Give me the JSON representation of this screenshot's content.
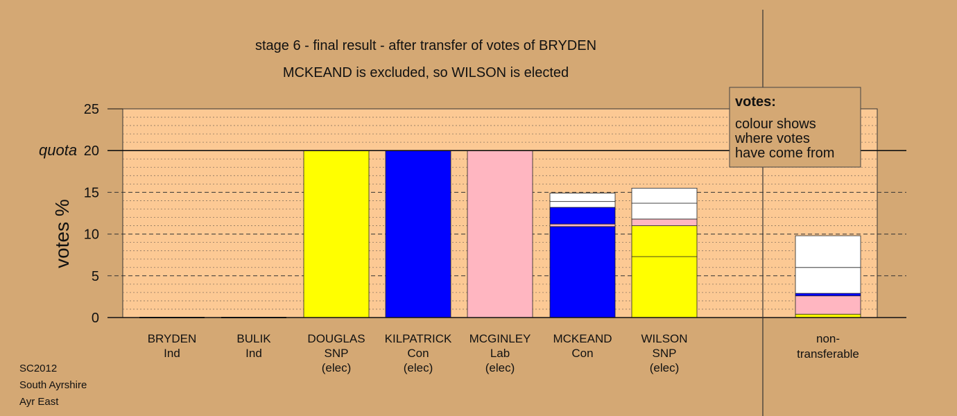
{
  "chart_data": {
    "type": "bar",
    "stacked": true,
    "title": "stage 6 - final result - after transfer of votes of BRYDEN",
    "subtitle": "MCKEAND is excluded, so WILSON is elected",
    "ylabel": "votes %",
    "ylim": [
      0,
      25
    ],
    "yticks": [
      0,
      5,
      10,
      15,
      20,
      25
    ],
    "quota": {
      "label": "quota",
      "value": 20
    },
    "grid": true,
    "colors": {
      "SNP": "#ffff00",
      "Con": "#0000ff",
      "Lab": "#ffb6c1",
      "Ind": "#ffffff",
      "Other": "#ffffff",
      "transfer": "#ffffff"
    },
    "candidates": [
      {
        "name": "BRYDEN",
        "party": "Ind",
        "status": "",
        "segments": []
      },
      {
        "name": "BULIK",
        "party": "Ind",
        "status": "",
        "segments": []
      },
      {
        "name": "DOUGLAS",
        "party": "SNP",
        "status": "(elec)",
        "segments": [
          {
            "from": "SNP",
            "value": 20.0
          }
        ]
      },
      {
        "name": "KILPATRICK",
        "party": "Con",
        "status": "(elec)",
        "segments": [
          {
            "from": "Con",
            "value": 20.0
          }
        ]
      },
      {
        "name": "MCGINLEY",
        "party": "Lab",
        "status": "(elec)",
        "segments": [
          {
            "from": "Lab",
            "value": 20.0
          }
        ]
      },
      {
        "name": "MCKEAND",
        "party": "Con",
        "status": "",
        "segments": [
          {
            "from": "Con",
            "value": 10.9
          },
          {
            "from": "Lab",
            "value": 0.3
          },
          {
            "from": "Con",
            "value": 2.0
          },
          {
            "from": "Other",
            "value": 0.7
          },
          {
            "from": "Other",
            "value": 1.0
          }
        ]
      },
      {
        "name": "WILSON",
        "party": "SNP",
        "status": "(elec)",
        "segments": [
          {
            "from": "SNP",
            "value": 7.3
          },
          {
            "from": "SNP",
            "value": 3.7
          },
          {
            "from": "Lab",
            "value": 0.8
          },
          {
            "from": "Other",
            "value": 1.9
          },
          {
            "from": "Other",
            "value": 1.8
          }
        ]
      }
    ],
    "nontransferable": {
      "label": "non-",
      "label2": "transferable",
      "segments": [
        {
          "from": "SNP",
          "value": 0.4
        },
        {
          "from": "Lab",
          "value": 2.2
        },
        {
          "from": "Con",
          "value": 0.3
        },
        {
          "from": "Other",
          "value": 3.1
        },
        {
          "from": "Other",
          "value": 3.8
        }
      ]
    }
  },
  "legend": {
    "heading": "votes:",
    "lines": [
      "colour shows",
      "where votes",
      "have come from"
    ]
  },
  "footer": {
    "lines": [
      "SC2012",
      "South Ayrshire",
      "Ayr East"
    ]
  }
}
